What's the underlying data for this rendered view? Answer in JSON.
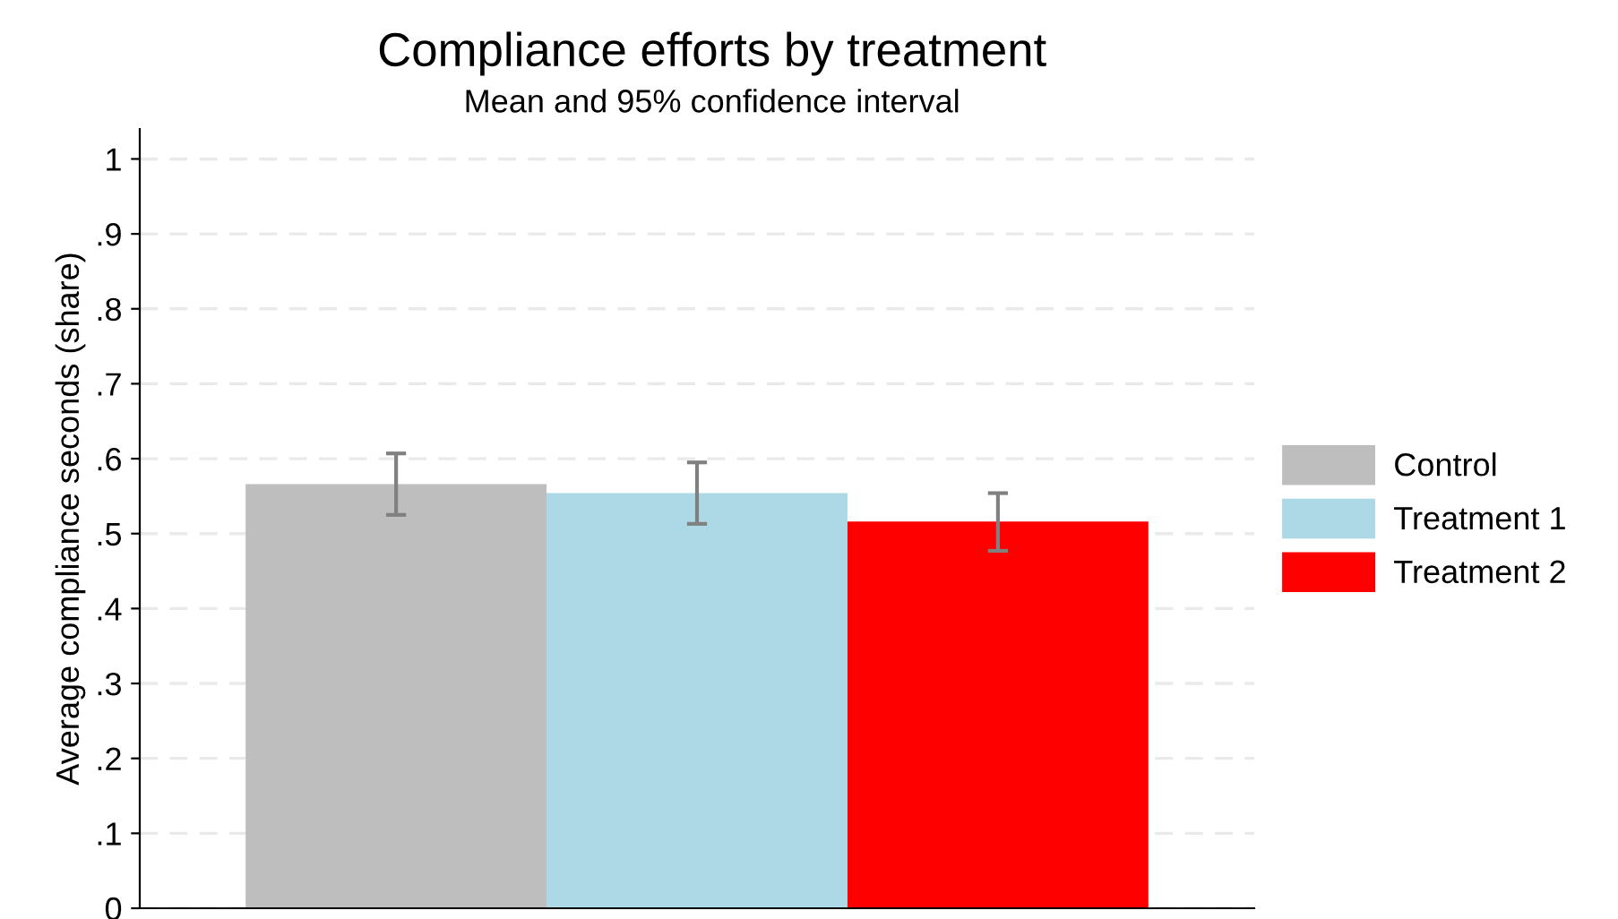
{
  "chart_data": {
    "type": "bar",
    "title": "Compliance efforts by treatment",
    "subtitle": "Mean and 95% confidence interval",
    "ylabel": "Average compliance seconds (share)",
    "categories": [
      null
    ],
    "series": [
      {
        "name": "Control",
        "color": "#bebebe",
        "values": [
          0.566
        ],
        "errors": [
          [
            0.525,
            0.607
          ]
        ]
      },
      {
        "name": "Treatment 1",
        "color": "#add8e6",
        "values": [
          0.554
        ],
        "errors": [
          [
            0.513,
            0.595
          ]
        ]
      },
      {
        "name": "Treatment 2",
        "color": "#ff0000",
        "values": [
          0.516
        ],
        "errors": [
          [
            0.477,
            0.554
          ]
        ]
      }
    ],
    "ylim": [
      0,
      1.04
    ],
    "yticks": [
      {
        "value": 0,
        "label": "0"
      },
      {
        "value": 0.1,
        "label": ".1"
      },
      {
        "value": 0.2,
        "label": ".2"
      },
      {
        "value": 0.3,
        "label": ".3"
      },
      {
        "value": 0.4,
        "label": ".4"
      },
      {
        "value": 0.5,
        "label": ".5"
      },
      {
        "value": 0.6,
        "label": ".6"
      },
      {
        "value": 0.7,
        "label": ".7"
      },
      {
        "value": 0.8,
        "label": ".8"
      },
      {
        "value": 0.9,
        "label": ".9"
      },
      {
        "value": 1,
        "label": "1"
      }
    ],
    "grid": "y",
    "legend": "right"
  }
}
